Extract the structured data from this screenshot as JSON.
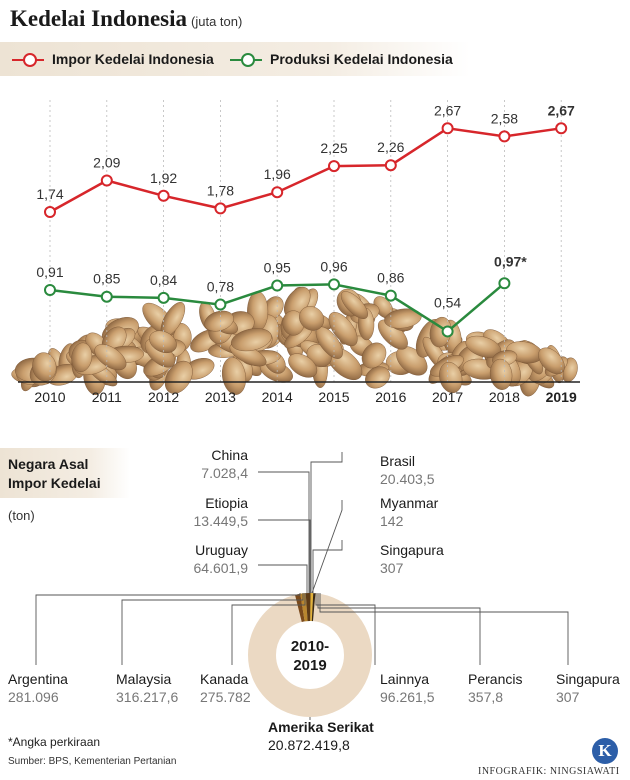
{
  "title": "Kedelai Indonesia",
  "unit": "(juta ton)",
  "legend": [
    {
      "label": "Impor Kedelai Indonesia",
      "color": "#d7262b"
    },
    {
      "label": "Produksi Kedelai Indonesia",
      "color": "#2a8a3e"
    }
  ],
  "chart_data": [
    {
      "type": "line",
      "title": "Kedelai Indonesia",
      "ylabel": "juta ton",
      "x": [
        "2010",
        "2011",
        "2012",
        "2013",
        "2014",
        "2015",
        "2016",
        "2017",
        "2018",
        "2019"
      ],
      "series": [
        {
          "name": "Impor Kedelai Indonesia",
          "values": [
            1.74,
            2.09,
            1.92,
            1.78,
            1.96,
            2.25,
            2.26,
            2.67,
            2.58,
            2.67
          ],
          "labels": [
            "1,74",
            "2,09",
            "1,92",
            "1,78",
            "1,96",
            "2,25",
            "2,26",
            "2,67",
            "2,58",
            "2,67"
          ]
        },
        {
          "name": "Produksi Kedelai Indonesia",
          "values": [
            0.91,
            0.85,
            0.84,
            0.78,
            0.95,
            0.96,
            0.86,
            0.54,
            0.97,
            null
          ],
          "labels": [
            "0,91",
            "0,85",
            "0,84",
            "0,78",
            "0,95",
            "0,96",
            "0,86",
            "0,54",
            "0,97*",
            ""
          ]
        }
      ],
      "ylim": [
        0,
        3
      ]
    },
    {
      "type": "pie",
      "title": "Negara Asal Impor Kedelai",
      "center_label": [
        "2010-",
        "2019"
      ],
      "unit": "(ton)",
      "slices": [
        {
          "name": "Amerika Serikat",
          "value": 20872419.8,
          "label": "20.872.419,8"
        },
        {
          "name": "China",
          "value": 7028.4,
          "label": "7.028,4"
        },
        {
          "name": "Etiopia",
          "value": 13449.5,
          "label": "13.449,5"
        },
        {
          "name": "Uruguay",
          "value": 64601.9,
          "label": "64.601,9"
        },
        {
          "name": "Argentina",
          "value": 281096,
          "label": "281.096"
        },
        {
          "name": "Malaysia",
          "value": 316217.6,
          "label": "316.217,6"
        },
        {
          "name": "Kanada",
          "value": 275782,
          "label": "275.782"
        },
        {
          "name": "Brasil",
          "value": 20403.5,
          "label": "20.403,5"
        },
        {
          "name": "Myanmar",
          "value": 142,
          "label": "142"
        },
        {
          "name": "Singapura",
          "value": 307,
          "label": "307"
        },
        {
          "name": "Lainnya",
          "value": 96261.5,
          "label": "96.261,5"
        },
        {
          "name": "Perancis",
          "value": 357.8,
          "label": "357,8"
        },
        {
          "name": "Singapura",
          "value": 307,
          "label": "307"
        }
      ]
    }
  ],
  "pie_section": {
    "line1": "Negara Asal",
    "line2": "Impor Kedelai",
    "unit": "(ton)"
  },
  "footer": {
    "note": "*Angka perkiraan",
    "source": "Sumber: BPS, Kementerian Pertanian",
    "credit": "INFOGRAFIK: NINGSIAWATI",
    "logo": "K"
  },
  "colors": {
    "impor": "#d7262b",
    "produksi": "#2a8a3e",
    "donut": "#ebd9c3"
  }
}
